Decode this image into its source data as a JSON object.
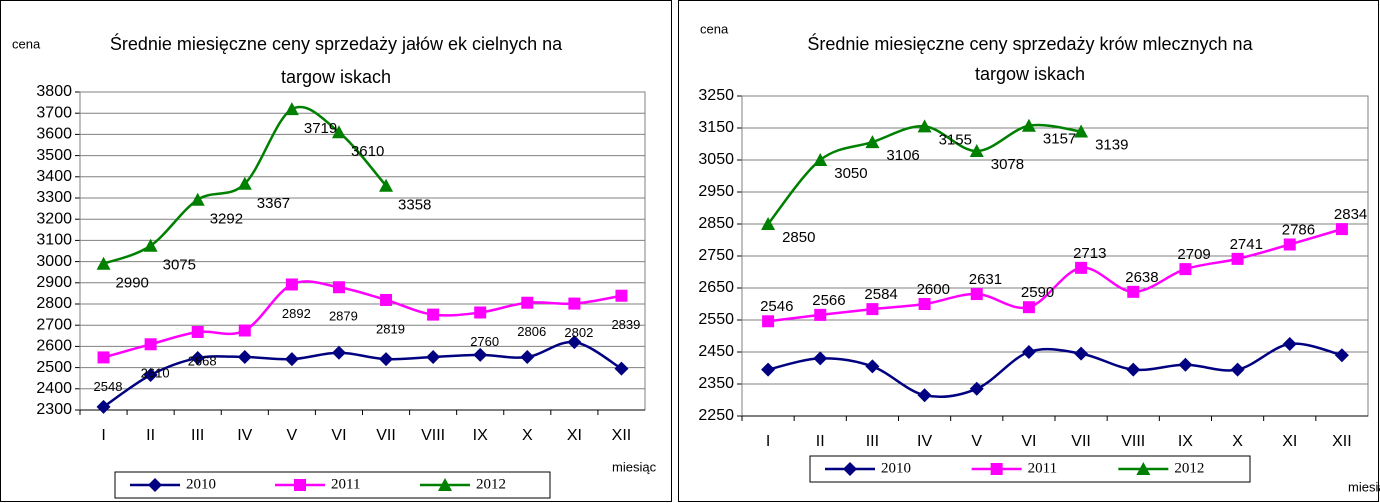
{
  "chart_data": [
    {
      "type": "line",
      "title": [
        "Średnie miesięczne ceny sprzedaży jałów ek cielnych na",
        "targow iskach"
      ],
      "y_label": "cena",
      "x_label": "miesiąc",
      "categories": [
        "I",
        "II",
        "III",
        "IV",
        "V",
        "VI",
        "VII",
        "VIII",
        "IX",
        "X",
        "XI",
        "XII"
      ],
      "ylim": [
        2300,
        3800
      ],
      "yticks": [
        2300,
        2400,
        2500,
        2600,
        2700,
        2800,
        2900,
        3000,
        3100,
        3200,
        3300,
        3400,
        3500,
        3600,
        3700,
        3800
      ],
      "grid": true,
      "series": [
        {
          "name": "2010",
          "color": "#000080",
          "marker": "diamond",
          "values": [
            2315,
            2465,
            2545,
            2550,
            2540,
            2570,
            2540,
            2550,
            2560,
            2550,
            2620,
            2495
          ]
        },
        {
          "name": "2011",
          "color": "#ff00ff",
          "marker": "square",
          "values": [
            2548,
            2610,
            2668,
            2675,
            2892,
            2879,
            2819,
            2750,
            2760,
            2806,
            2802,
            2839
          ],
          "value_labels": [
            "2548",
            "2610",
            "2668",
            null,
            "2892",
            "2879",
            "2819",
            null,
            "2760",
            "2806",
            "2802",
            "2839"
          ]
        },
        {
          "name": "2012",
          "color": "#008000",
          "marker": "triangle",
          "values": [
            2990,
            3075,
            3292,
            3367,
            3719,
            3610,
            3358,
            null,
            null,
            null,
            null,
            null
          ],
          "value_labels": [
            "2990",
            "3075",
            "3292",
            "3367",
            "3719",
            "3610",
            "3358",
            null,
            null,
            null,
            null,
            null
          ]
        }
      ]
    },
    {
      "type": "line",
      "title": [
        "Średnie miesięczne ceny sprzedaży krów  mlecznych na",
        "targow iskach"
      ],
      "y_label": "cena",
      "x_label": "miesiąc",
      "categories": [
        "I",
        "II",
        "III",
        "IV",
        "V",
        "VI",
        "VII",
        "VIII",
        "IX",
        "X",
        "XI",
        "XII"
      ],
      "ylim": [
        2250,
        3250
      ],
      "yticks": [
        2250,
        2350,
        2450,
        2550,
        2650,
        2750,
        2850,
        2950,
        3050,
        3150,
        3250
      ],
      "grid": true,
      "series": [
        {
          "name": "2010",
          "color": "#000080",
          "marker": "diamond",
          "values": [
            2395,
            2430,
            2405,
            2315,
            2335,
            2450,
            2445,
            2395,
            2410,
            2395,
            2475,
            2440
          ]
        },
        {
          "name": "2011",
          "color": "#ff00ff",
          "marker": "square",
          "values": [
            2546,
            2566,
            2584,
            2600,
            2631,
            2590,
            2713,
            2638,
            2709,
            2741,
            2786,
            2834
          ],
          "value_labels": [
            "2546",
            "2566",
            "2584",
            "2600",
            "2631",
            "2590",
            "2713",
            "2638",
            "2709",
            "2741",
            "2786",
            "2834"
          ]
        },
        {
          "name": "2012",
          "color": "#008000",
          "marker": "triangle",
          "values": [
            2850,
            3050,
            3106,
            3155,
            3078,
            3157,
            3139,
            null,
            null,
            null,
            null,
            null
          ],
          "value_labels": [
            "2850",
            "3050",
            "3106",
            "3155",
            "3078",
            "3157",
            "3139",
            null,
            null,
            null,
            null,
            null
          ]
        }
      ]
    }
  ]
}
